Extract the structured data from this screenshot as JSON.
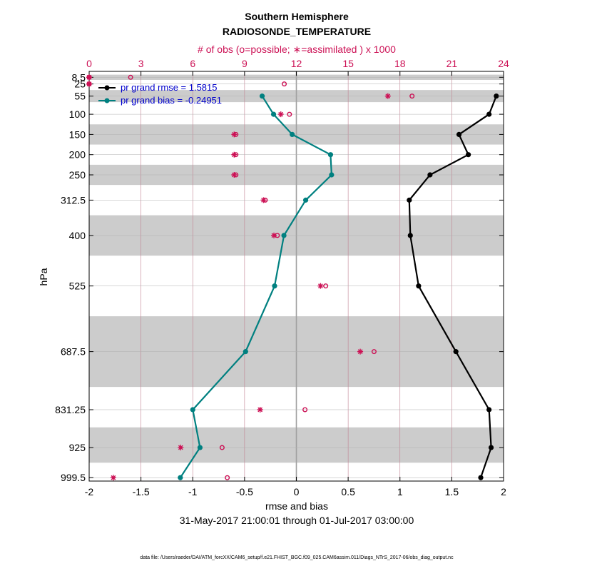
{
  "chart_data": {
    "type": "line",
    "title": "Southern Hemisphere",
    "subtitle": "RADIOSONDE_TEMPERATURE",
    "xlabel": "rmse and bias",
    "ylabel": "hPa",
    "top_xlabel": "# of obs (o=possible; ∗=assimilated ) x 1000",
    "date_range": "31-May-2017 21:00:01 through 01-Jul-2017 03:00:00",
    "footnote": "data file: /Users/raeder/DAI/ATM_forcXX/CAM6_setup/f.e21.FHIST_BGC.f09_025.CAM6assim.011/Diags_NTrS_2017-06/obs_diag_output.nc",
    "xlim": [
      -2,
      2
    ],
    "xticks": [
      "-2",
      "-1.5",
      "-1",
      "-0.5",
      "0",
      "0.5",
      "1",
      "1.5",
      "2"
    ],
    "top_xlim": [
      0,
      24
    ],
    "top_xticks": [
      "0",
      "3",
      "6",
      "9",
      "12",
      "15",
      "18",
      "21",
      "24"
    ],
    "levels": [
      "8.5",
      "25",
      "55",
      "100",
      "150",
      "200",
      "250",
      "312.5",
      "400",
      "525",
      "687.5",
      "831.25",
      "925",
      "999.5"
    ],
    "ylim": [
      0,
      1000
    ],
    "shaded_bands": [
      [
        2,
        15
      ],
      [
        40,
        70
      ],
      [
        125,
        175
      ],
      [
        225,
        275
      ],
      [
        350,
        450
      ],
      [
        600,
        775
      ],
      [
        875,
        962.5
      ]
    ],
    "series": [
      {
        "name": "pr grand rmse = 1.5815",
        "color": "#000000",
        "points": [
          [
            1.93,
            55
          ],
          [
            1.86,
            100
          ],
          [
            1.57,
            150
          ],
          [
            1.66,
            200
          ],
          [
            1.29,
            250
          ],
          [
            1.09,
            312.5
          ],
          [
            1.1,
            400
          ],
          [
            1.18,
            525
          ],
          [
            1.54,
            687.5
          ],
          [
            1.86,
            831.25
          ],
          [
            1.88,
            925
          ],
          [
            1.78,
            999.5
          ]
        ]
      },
      {
        "name": "pr grand bias = -0.24951",
        "color": "#008080",
        "points": [
          [
            -0.33,
            55
          ],
          [
            -0.22,
            100
          ],
          [
            -0.04,
            150
          ],
          [
            0.33,
            200
          ],
          [
            0.34,
            250
          ],
          [
            0.09,
            312.5
          ],
          [
            -0.12,
            400
          ],
          [
            -0.21,
            525
          ],
          [
            -0.49,
            687.5
          ],
          [
            -1.0,
            831.25
          ],
          [
            -0.93,
            925
          ],
          [
            -1.12,
            999.5
          ]
        ]
      }
    ],
    "obs_possible": [
      [
        0.0,
        8.5
      ],
      [
        2.4,
        8.5
      ],
      [
        0.0,
        25
      ],
      [
        11.3,
        25
      ],
      [
        18.7,
        55
      ],
      [
        11.6,
        100
      ],
      [
        8.5,
        150
      ],
      [
        8.5,
        200
      ],
      [
        8.5,
        250
      ],
      [
        10.2,
        312.5
      ],
      [
        10.9,
        400
      ],
      [
        13.7,
        525
      ],
      [
        16.5,
        687.5
      ],
      [
        12.5,
        831.25
      ],
      [
        7.7,
        925
      ],
      [
        8.0,
        999.5
      ]
    ],
    "obs_assimilated": [
      [
        0.0,
        8.5
      ],
      [
        0.0,
        25
      ],
      [
        17.3,
        55
      ],
      [
        11.1,
        100
      ],
      [
        8.4,
        150
      ],
      [
        8.4,
        200
      ],
      [
        8.4,
        250
      ],
      [
        10.1,
        312.5
      ],
      [
        10.7,
        400
      ],
      [
        13.4,
        525
      ],
      [
        15.7,
        687.5
      ],
      [
        9.9,
        831.25
      ],
      [
        5.3,
        925
      ],
      [
        1.4,
        999.5
      ]
    ],
    "colors": {
      "obs": "#cc1155",
      "legend_text": "#0000cc",
      "band": "#cccccc",
      "grid": "#c08090"
    }
  }
}
